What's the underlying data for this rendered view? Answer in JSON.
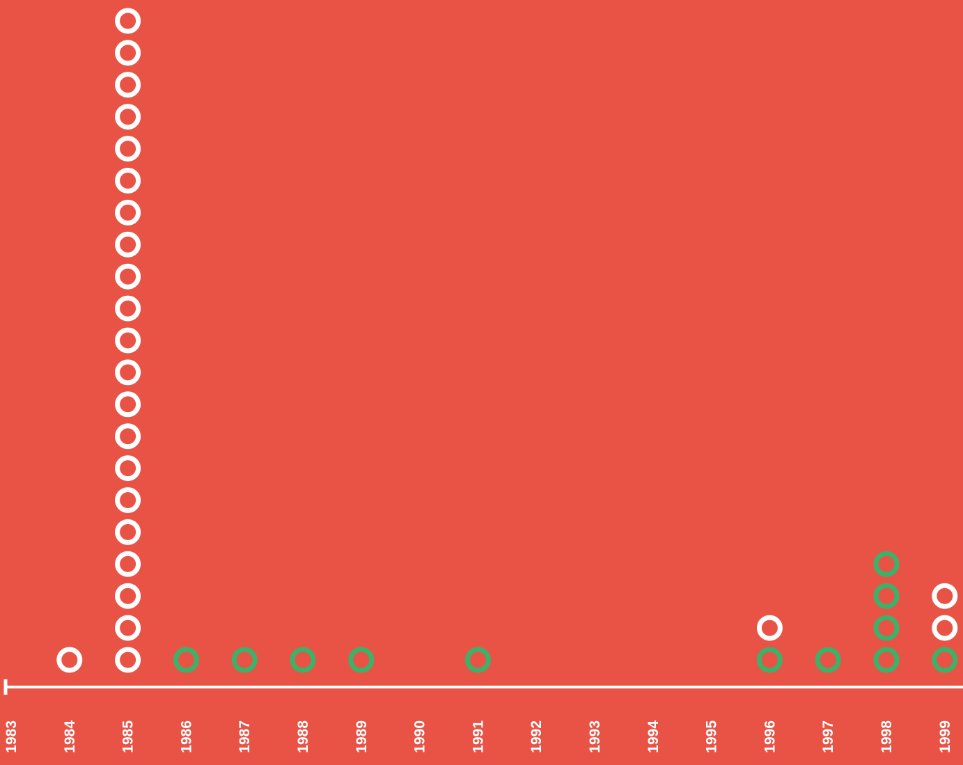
{
  "chart_data": {
    "type": "scatter",
    "x": [
      "1983",
      "1984",
      "1985",
      "1986",
      "1987",
      "1988",
      "1989",
      "1990",
      "1991",
      "1992",
      "1993",
      "1994",
      "1995",
      "1996",
      "1997",
      "1998",
      "1999"
    ],
    "series": [
      {
        "color": "#ffffff",
        "values": [
          0,
          1,
          21,
          0,
          0,
          0,
          0,
          0,
          0,
          0,
          0,
          0,
          0,
          1,
          0,
          0,
          2
        ]
      },
      {
        "color": "#3fb067",
        "values": [
          0,
          0,
          0,
          1,
          1,
          1,
          1,
          0,
          1,
          0,
          0,
          0,
          0,
          1,
          1,
          4,
          1
        ]
      }
    ],
    "stacking": "green-first",
    "legend": "none",
    "grid": false
  },
  "colors": {
    "background": "#e95346",
    "axis": "#ffffff"
  }
}
